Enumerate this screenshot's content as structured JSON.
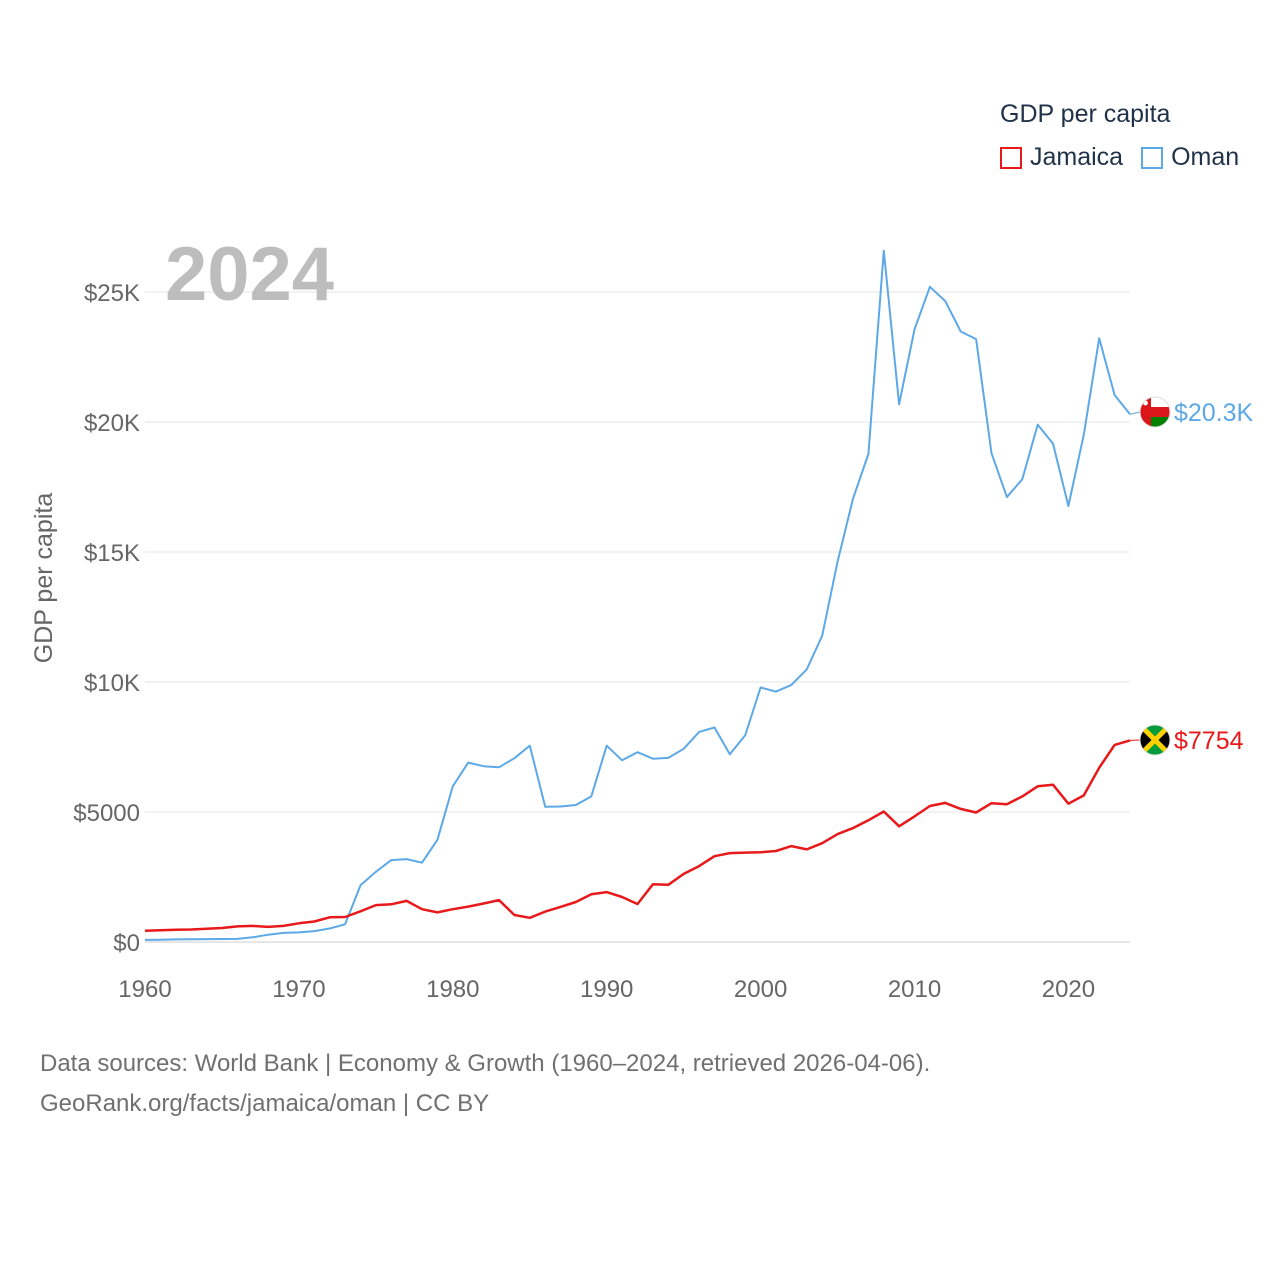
{
  "legend": {
    "title": "GDP per capita",
    "items": [
      {
        "name": "Jamaica",
        "color": "#e8191a"
      },
      {
        "name": "Oman",
        "color": "#5da8e6"
      }
    ]
  },
  "year_label": "2024",
  "source": {
    "line1": "Data sources: World Bank | Economy & Growth (1960–2024, retrieved 2026-04-06).",
    "line2": "GeoRank.org/facts/jamaica/oman | CC BY"
  },
  "chart_data": {
    "type": "line",
    "title": "GDP per capita",
    "xlabel": "",
    "ylabel": "GDP per capita",
    "xlim": [
      1960,
      2024
    ],
    "ylim": [
      0,
      27000
    ],
    "x_ticks": [
      1960,
      1970,
      1980,
      1990,
      2000,
      2010,
      2020
    ],
    "x_tick_labels": [
      "1960",
      "1970",
      "1980",
      "1990",
      "2000",
      "2010",
      "2020"
    ],
    "y_ticks": [
      0,
      5000,
      10000,
      15000,
      20000,
      25000
    ],
    "y_tick_labels": [
      "$0",
      "$5000",
      "$10K",
      "$15K",
      "$20K",
      "$25K"
    ],
    "grid": true,
    "legend_position": "top-right",
    "series": [
      {
        "name": "Jamaica",
        "color": "#e8191a",
        "end_label": "$7754",
        "x": [
          1960,
          1961,
          1962,
          1963,
          1964,
          1965,
          1966,
          1967,
          1968,
          1969,
          1970,
          1971,
          1972,
          1973,
          1974,
          1975,
          1976,
          1977,
          1978,
          1979,
          1980,
          1981,
          1982,
          1983,
          1984,
          1985,
          1986,
          1987,
          1988,
          1989,
          1990,
          1991,
          1992,
          1993,
          1994,
          1995,
          1996,
          1997,
          1998,
          1999,
          2000,
          2001,
          2002,
          2003,
          2004,
          2005,
          2006,
          2007,
          2008,
          2009,
          2010,
          2011,
          2012,
          2013,
          2014,
          2015,
          2016,
          2017,
          2018,
          2019,
          2020,
          2021,
          2022,
          2023,
          2024
        ],
        "values": [
          430,
          450,
          470,
          480,
          510,
          540,
          600,
          620,
          580,
          620,
          720,
          790,
          950,
          960,
          1180,
          1420,
          1450,
          1580,
          1260,
          1140,
          1260,
          1360,
          1480,
          1610,
          1040,
          930,
          1170,
          1350,
          1540,
          1840,
          1920,
          1730,
          1460,
          2220,
          2200,
          2620,
          2920,
          3300,
          3420,
          3440,
          3450,
          3500,
          3690,
          3560,
          3800,
          4150,
          4380,
          4680,
          5020,
          4450,
          4830,
          5230,
          5350,
          5120,
          4980,
          5340,
          5300,
          5600,
          5990,
          6050,
          5320,
          5640,
          6700,
          7580,
          7754
        ]
      },
      {
        "name": "Oman",
        "color": "#5da8e6",
        "end_label": "$20.3K",
        "x": [
          1960,
          1961,
          1962,
          1963,
          1964,
          1965,
          1966,
          1967,
          1968,
          1969,
          1970,
          1971,
          1972,
          1973,
          1974,
          1975,
          1976,
          1977,
          1978,
          1979,
          1980,
          1981,
          1982,
          1983,
          1984,
          1985,
          1986,
          1987,
          1988,
          1989,
          1990,
          1991,
          1992,
          1993,
          1994,
          1995,
          1996,
          1997,
          1998,
          1999,
          2000,
          2001,
          2002,
          2003,
          2004,
          2005,
          2006,
          2007,
          2008,
          2009,
          2010,
          2011,
          2012,
          2013,
          2014,
          2015,
          2016,
          2017,
          2018,
          2019,
          2020,
          2021,
          2022,
          2023,
          2024
        ],
        "values": [
          80,
          90,
          100,
          105,
          110,
          115,
          120,
          180,
          280,
          350,
          370,
          420,
          520,
          680,
          2180,
          2700,
          3150,
          3190,
          3050,
          3930,
          5990,
          6900,
          6760,
          6720,
          7070,
          7550,
          5200,
          5210,
          5270,
          5600,
          7550,
          6990,
          7300,
          7050,
          7080,
          7430,
          8080,
          8250,
          7220,
          7950,
          9790,
          9630,
          9890,
          10490,
          11780,
          14630,
          17050,
          18770,
          26590,
          20680,
          23560,
          25200,
          24650,
          23480,
          23190,
          18800,
          17110,
          17800,
          19900,
          19170,
          16770,
          19510,
          23220,
          21040,
          20300
        ]
      }
    ]
  }
}
